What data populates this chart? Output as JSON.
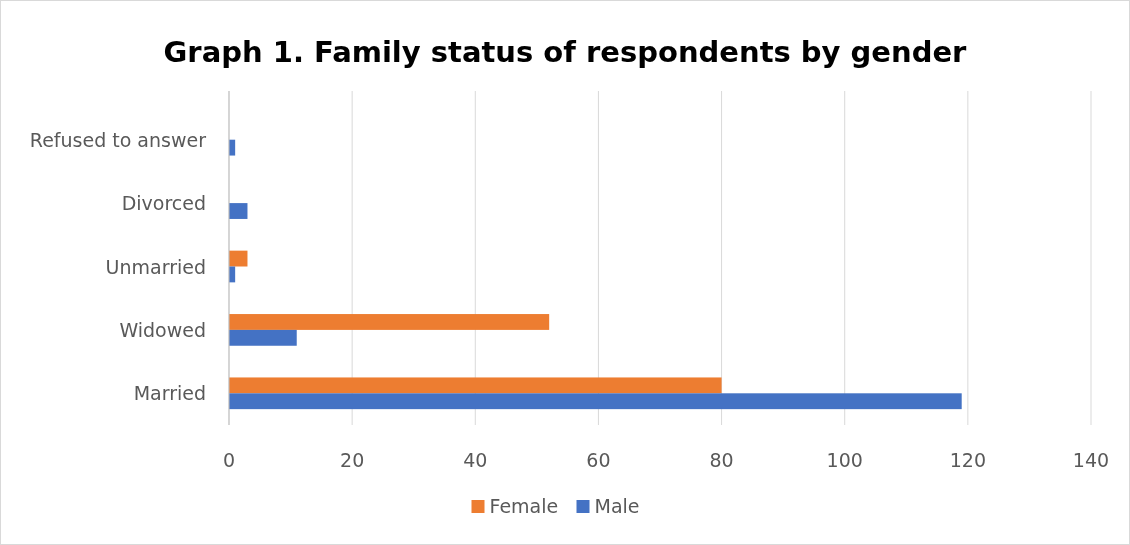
{
  "chart_data": {
    "type": "bar",
    "orientation": "horizontal",
    "title": "Graph 1. Family status of respondents by gender",
    "categories": [
      "Refused to answer",
      "Divorced",
      "Unmarried",
      "Widowed",
      "Married"
    ],
    "series": [
      {
        "name": "Female",
        "color": "#ed7d31",
        "values": [
          0,
          0,
          3,
          52,
          80
        ]
      },
      {
        "name": "Male",
        "color": "#4472c4",
        "values": [
          1,
          3,
          1,
          11,
          119
        ]
      }
    ],
    "xlim": [
      0,
      140
    ],
    "xticks": [
      0,
      20,
      40,
      60,
      80,
      100,
      120,
      140
    ],
    "grid": "x",
    "legend": "bottom"
  }
}
